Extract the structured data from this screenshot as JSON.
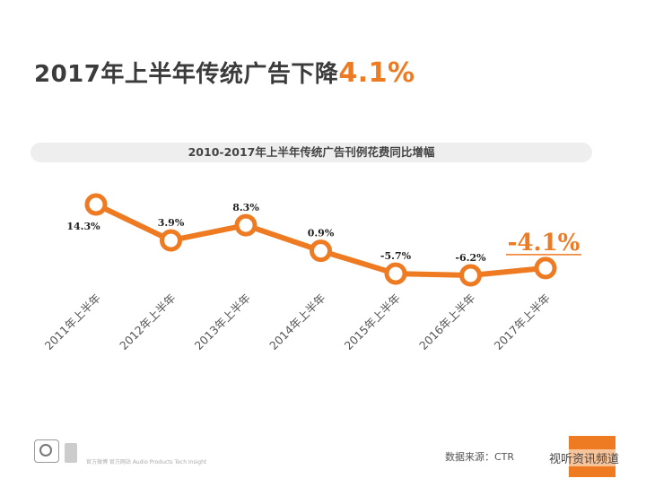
{
  "title": {
    "main": "2017年上半年传统广告下降",
    "highlight": "4.1%"
  },
  "chart_data": {
    "type": "line",
    "title": "2010-2017年上半年传统广告刊例花费同比增幅",
    "categories": [
      "2011年上半年",
      "2012年上半年",
      "2013年上半年",
      "2014年上半年",
      "2015年上半年",
      "2016年上半年",
      "2017年上半年"
    ],
    "values": [
      14.3,
      3.9,
      8.3,
      0.9,
      -5.7,
      -6.2,
      -4.1
    ],
    "data_labels": [
      "14.3%",
      "3.9%",
      "8.3%",
      "0.9%",
      "-5.7%",
      "-6.2%",
      "-4.1%"
    ],
    "highlight_index": 6,
    "line_color": "#ee7a22",
    "grid": false
  },
  "footer": {
    "small_text": "官方微博  官方网站  Audio Products  Tech Insight",
    "source": "数据来源：CTR",
    "watermark": "视听资讯频道"
  },
  "colors": {
    "accent": "#ee7a22",
    "title": "#3b3b3b"
  }
}
